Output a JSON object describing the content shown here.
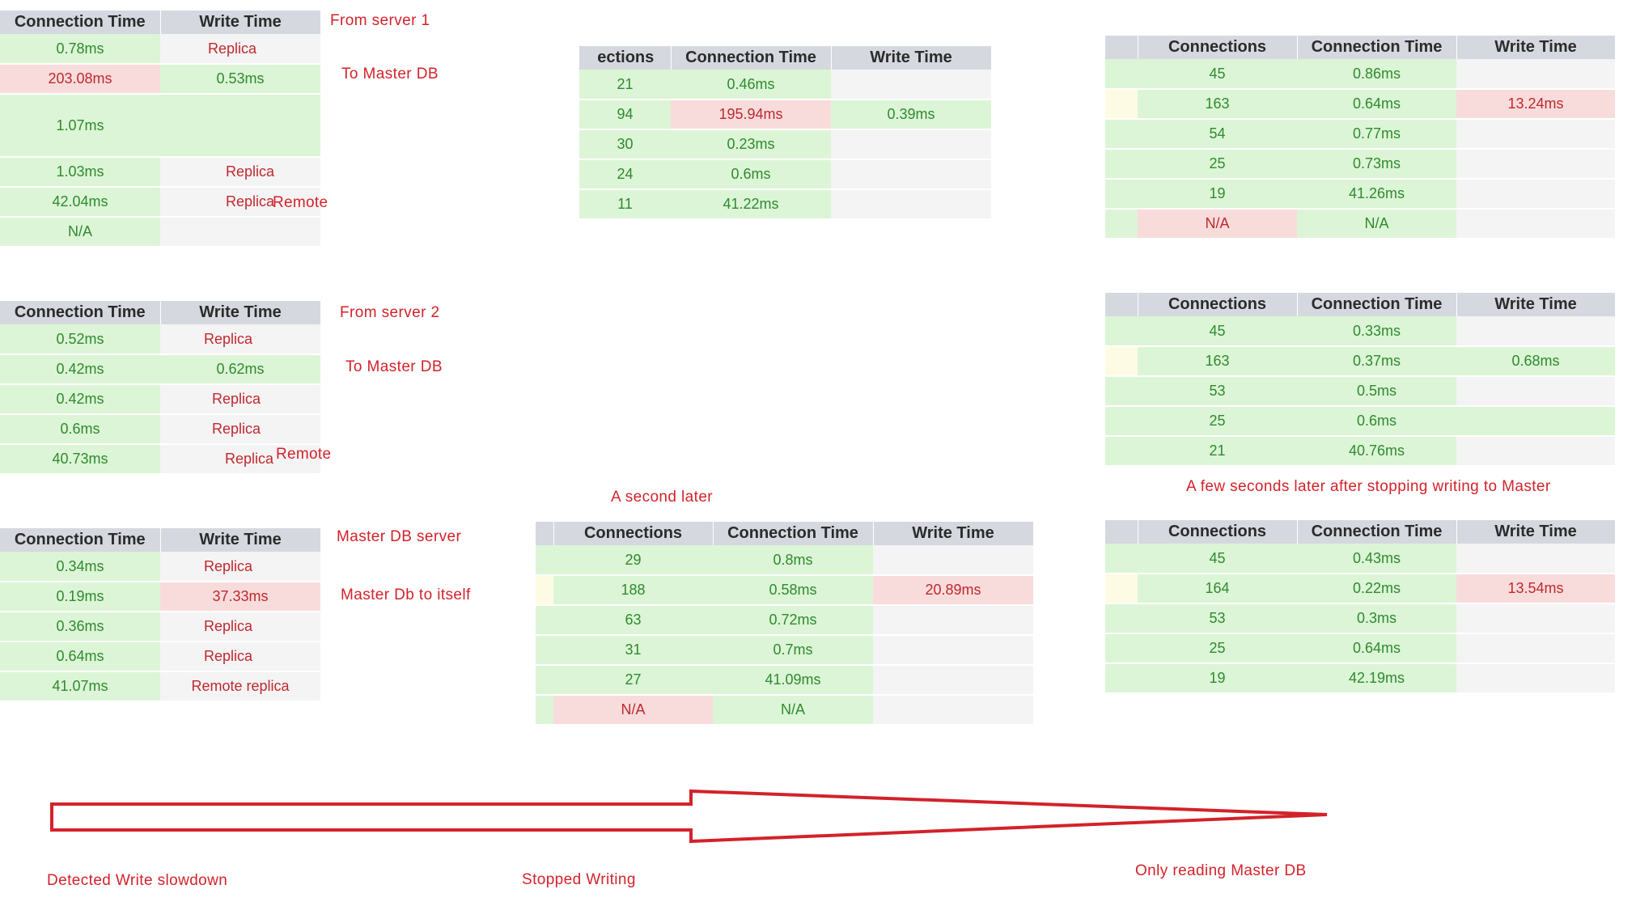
{
  "headers": {
    "connections": "Connections",
    "connections_clipped": "ections",
    "connection_time": "Connection Time",
    "write_time": "Write Time"
  },
  "table_server1": {
    "rows": [
      {
        "conn": "0.78ms",
        "write": "Replica"
      },
      {
        "conn": "203.08ms",
        "write": "0.53ms"
      },
      {
        "conn": "1.07ms",
        "write": ""
      },
      {
        "conn": "1.03ms",
        "write": "Replica"
      },
      {
        "conn": "42.04ms",
        "write": "Replica",
        "extra": "Remote"
      },
      {
        "conn": "N/A",
        "write": ""
      }
    ],
    "note_top": "From server 1",
    "note_bottom": "To Master DB"
  },
  "table_server2": {
    "rows": [
      {
        "conn": "0.52ms",
        "write": "Replica"
      },
      {
        "conn": "0.42ms",
        "write": "0.62ms"
      },
      {
        "conn": "0.42ms",
        "write": "Replica"
      },
      {
        "conn": "0.6ms",
        "write": "Replica"
      },
      {
        "conn": "40.73ms",
        "write": "Replica",
        "extra": "Remote"
      }
    ],
    "note_top": "From server 2",
    "note_bottom": "To Master DB"
  },
  "table_master": {
    "rows": [
      {
        "conn": "0.34ms",
        "write": "Replica"
      },
      {
        "conn": "0.19ms",
        "write": "37.33ms"
      },
      {
        "conn": "0.36ms",
        "write": "Replica"
      },
      {
        "conn": "0.64ms",
        "write": "Replica"
      },
      {
        "conn": "41.07ms",
        "write": "Remote replica"
      }
    ],
    "note_top": "Master DB server",
    "note_bottom": "Master Db to itself"
  },
  "table_mid_top": {
    "rows": [
      {
        "connections": "21",
        "conn": "0.46ms",
        "write": ""
      },
      {
        "connections": "94",
        "conn": "195.94ms",
        "write": "0.39ms"
      },
      {
        "connections": "30",
        "conn": "0.23ms",
        "write": ""
      },
      {
        "connections": "24",
        "conn": "0.6ms",
        "write": ""
      },
      {
        "connections": "11",
        "conn": "41.22ms",
        "write": ""
      }
    ]
  },
  "table_mid_bottom": {
    "title": "A second later",
    "rows": [
      {
        "connections": "29",
        "conn": "0.8ms",
        "write": ""
      },
      {
        "connections": "188",
        "conn": "0.58ms",
        "write": "20.89ms"
      },
      {
        "connections": "63",
        "conn": "0.72ms",
        "write": ""
      },
      {
        "connections": "31",
        "conn": "0.7ms",
        "write": ""
      },
      {
        "connections": "27",
        "conn": "41.09ms",
        "write": ""
      },
      {
        "connections": "N/A",
        "conn": "N/A",
        "write": ""
      }
    ]
  },
  "table_right_1": {
    "rows": [
      {
        "connections": "45",
        "conn": "0.86ms",
        "write": ""
      },
      {
        "connections": "163",
        "conn": "0.64ms",
        "write": "13.24ms"
      },
      {
        "connections": "54",
        "conn": "0.77ms",
        "write": ""
      },
      {
        "connections": "25",
        "conn": "0.73ms",
        "write": ""
      },
      {
        "connections": "19",
        "conn": "41.26ms",
        "write": ""
      },
      {
        "connections": "N/A",
        "conn": "N/A",
        "write": ""
      }
    ]
  },
  "table_right_2": {
    "rows": [
      {
        "connections": "45",
        "conn": "0.33ms",
        "write": ""
      },
      {
        "connections": "163",
        "conn": "0.37ms",
        "write": "0.68ms"
      },
      {
        "connections": "53",
        "conn": "0.5ms",
        "write": ""
      },
      {
        "connections": "25",
        "conn": "0.6ms",
        "write": ""
      },
      {
        "connections": "21",
        "conn": "40.76ms",
        "write": ""
      }
    ],
    "note_below": "A few seconds later after stopping writing to Master"
  },
  "table_right_3": {
    "rows": [
      {
        "connections": "45",
        "conn": "0.43ms",
        "write": ""
      },
      {
        "connections": "164",
        "conn": "0.22ms",
        "write": "13.54ms"
      },
      {
        "connections": "53",
        "conn": "0.3ms",
        "write": ""
      },
      {
        "connections": "25",
        "conn": "0.64ms",
        "write": ""
      },
      {
        "connections": "19",
        "conn": "42.19ms",
        "write": ""
      }
    ]
  },
  "timeline": {
    "left_label": "Detected Write slowdown",
    "mid_label": "Stopped Writing",
    "right_label": "Only reading Master DB"
  },
  "colors": {
    "good": "#dcf5d6",
    "bad": "#f8dcdc",
    "neutral": "#f4f4f4",
    "annotation": "#d3222a",
    "header": "#d5d8de"
  }
}
